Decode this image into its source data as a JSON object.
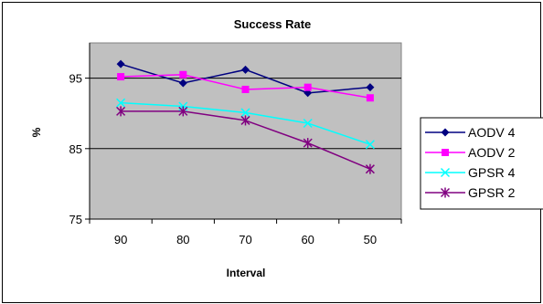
{
  "chart_data": {
    "type": "line",
    "title": "Success Rate",
    "xlabel": "Interval",
    "ylabel": "%",
    "categories": [
      "90",
      "80",
      "70",
      "60",
      "50"
    ],
    "ylim": [
      75,
      100
    ],
    "yticks": [
      75,
      85,
      95
    ],
    "grid": true,
    "legend_position": "right",
    "plot_background": "#c0c0c0",
    "series": [
      {
        "name": "AODV 4",
        "values": [
          97.0,
          94.3,
          96.2,
          92.9,
          93.7
        ],
        "color": "#000080",
        "marker": "diamond"
      },
      {
        "name": "AODV 2",
        "values": [
          95.2,
          95.5,
          93.4,
          93.7,
          92.2
        ],
        "color": "#ff00ff",
        "marker": "square"
      },
      {
        "name": "GPSR 4",
        "values": [
          91.5,
          91.0,
          90.1,
          88.6,
          85.6
        ],
        "color": "#00ffff",
        "marker": "x"
      },
      {
        "name": "GPSR 2",
        "values": [
          90.3,
          90.3,
          89.0,
          85.8,
          82.1
        ],
        "color": "#800080",
        "marker": "star"
      }
    ]
  }
}
